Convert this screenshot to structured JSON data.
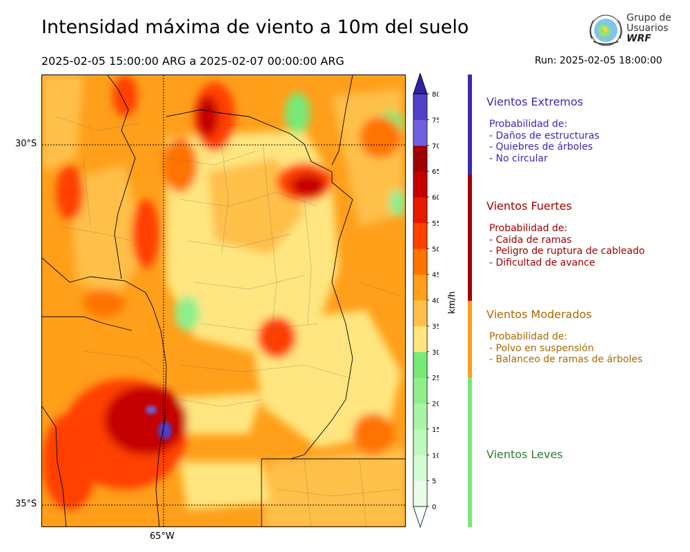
{
  "header": {
    "title": "Intensidad máxima de viento a 10m del suelo",
    "period": "2025-02-05 15:00:00 ARG  a  2025-02-07 00:00:00 ARG",
    "run": "Run: 2025-02-05 18:00:00"
  },
  "logo": {
    "line1": "Grupo de",
    "line2": "Usuarios",
    "line3": "WRF"
  },
  "map": {
    "lat_labels": [
      "30°S",
      "35°S"
    ],
    "lon_labels": [
      "65°W"
    ]
  },
  "colorbar": {
    "unit": "km/h",
    "ticks": [
      "0",
      "5",
      "10",
      "15",
      "20",
      "25",
      "30",
      "35",
      "40",
      "45",
      "50",
      "55",
      "60",
      "65",
      "70",
      "75",
      "80"
    ],
    "colors": [
      "#eafdea",
      "#d4fbd4",
      "#bff8bf",
      "#a8f5a8",
      "#8fef8f",
      "#77ea77",
      "#ffe680",
      "#ffc04a",
      "#ff9f1a",
      "#ff7300",
      "#ff4000",
      "#e61a00",
      "#c40000",
      "#a00000",
      "#7060e0",
      "#5040c8",
      "#3a2ab0"
    ],
    "over_color": "#3020a0"
  },
  "legend": {
    "categories": [
      {
        "title": "Vientos Extremos",
        "color": "#3a2ab0",
        "intro": "Probabilidad de:",
        "items": [
          "- Daños de estructuras",
          "- Quiebres de árboles",
          "- No circular"
        ]
      },
      {
        "title": "Vientos Fuertes",
        "color": "#a00000",
        "intro": "Probabilidad de:",
        "items": [
          "- Caida de ramas",
          "- Peligro de ruptura de cableado",
          "- Dificultad de avance"
        ]
      },
      {
        "title": "Vientos Moderados",
        "color": "#a86a00",
        "bar_color": "#ff9f1a",
        "intro": "Probabilidad de:",
        "items": [
          "- Polvo en suspensión",
          "- Balanceo de ramas de árboles"
        ]
      },
      {
        "title": "Vientos Leves",
        "color": "#2e7d32",
        "bar_color": "#77ea77"
      }
    ]
  }
}
